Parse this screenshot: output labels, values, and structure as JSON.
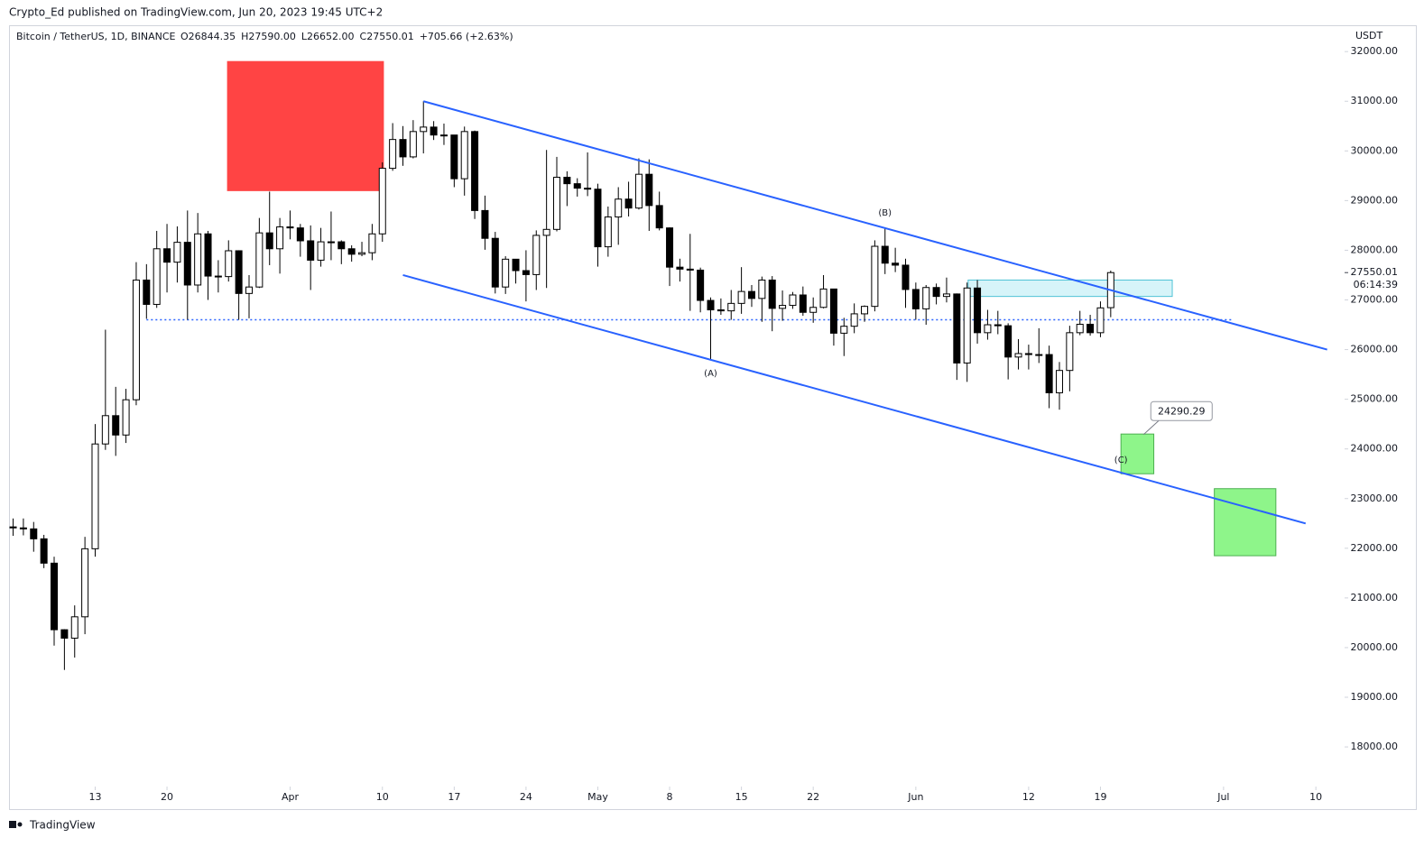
{
  "header": {
    "byline": "Crypto_Ed published on TradingView.com, Jun 20, 2023 19:45 UTC+2",
    "footer": "TradingView"
  },
  "chart_data": {
    "type": "candlestick",
    "symbol": "Bitcoin / TetherUS, 1D, BINANCE",
    "legend": [
      "O26844.35",
      "H27590.00",
      "L26652.00",
      "C27550.01",
      "+705.66 (+2.63%)"
    ],
    "currency": "USDT",
    "last_price": {
      "value": 27550.01,
      "label": "27550.01"
    },
    "countdown": "06:14:39",
    "open": [
      22430,
      22410,
      22390,
      22190,
      21700,
      20360,
      20190,
      20620,
      21990,
      24100,
      24670,
      24280,
      24990,
      27400,
      26910,
      28030,
      27760,
      28160,
      27300,
      28330,
      27480,
      27470,
      27990,
      27130,
      27260,
      28350,
      28030,
      28470,
      28450,
      28190,
      27800,
      28170,
      28170,
      28030,
      27920,
      27950,
      28330,
      29650,
      30230,
      29880,
      30390,
      30480,
      30320,
      30320,
      29440,
      30390,
      28800,
      28240,
      27260,
      27820,
      27590,
      27510,
      28300,
      28420,
      29470,
      29340,
      29250,
      29230,
      28070,
      28670,
      29030,
      28850,
      29530,
      28900,
      28450,
      27660,
      27620,
      27600,
      26990,
      26800,
      26780,
      26930,
      27170,
      27030,
      27400,
      26830,
      26890,
      27100,
      26750,
      26850,
      27220,
      26330,
      26470,
      26720,
      26870,
      28080,
      27740,
      27700,
      27210,
      26820,
      27250,
      27070,
      27120,
      25730,
      27240,
      26340,
      26500,
      26480,
      25850,
      25920,
      25900,
      25900,
      25130,
      25580,
      26340,
      26510,
      26340,
      26844.35
    ],
    "high": [
      22600,
      22600,
      22530,
      22270,
      21830,
      20370,
      20850,
      22230,
      24500,
      26400,
      25250,
      25210,
      27760,
      27720,
      28390,
      28530,
      28480,
      28800,
      28750,
      28390,
      27800,
      28200,
      28000,
      27500,
      28650,
      29180,
      28650,
      28800,
      28530,
      28500,
      28450,
      28780,
      28200,
      28100,
      28170,
      28530,
      29770,
      30560,
      30500,
      30620,
      31000,
      30600,
      30550,
      30320,
      30490,
      30410,
      29100,
      28370,
      27880,
      27820,
      28000,
      28400,
      30020,
      29880,
      29590,
      29450,
      29970,
      29340,
      28880,
      29270,
      29380,
      29850,
      29830,
      29180,
      28460,
      27830,
      28330,
      27650,
      27050,
      27030,
      27200,
      27660,
      27300,
      27470,
      27480,
      27190,
      27160,
      27270,
      27050,
      27500,
      27220,
      26640,
      26930,
      26890,
      28200,
      28450,
      28050,
      27830,
      27350,
      27300,
      27330,
      27450,
      27130,
      27350,
      27400,
      26800,
      26780,
      26530,
      26210,
      26100,
      26430,
      26080,
      25750,
      26480,
      26780,
      26700,
      26970,
      27590
    ],
    "low": [
      22250,
      22260,
      21930,
      21600,
      20040,
      19550,
      19800,
      20270,
      21830,
      23980,
      23860,
      24120,
      24880,
      26620,
      26840,
      27150,
      27350,
      26600,
      27150,
      27000,
      27150,
      27370,
      26600,
      26630,
      27240,
      27700,
      27530,
      28220,
      27870,
      27200,
      27670,
      27800,
      27720,
      27770,
      27880,
      27800,
      28170,
      29600,
      29700,
      29850,
      29950,
      30220,
      30120,
      29270,
      29100,
      28630,
      28010,
      27130,
      27120,
      27330,
      26970,
      27200,
      27240,
      28380,
      28890,
      29080,
      29090,
      27670,
      27870,
      28110,
      28680,
      28820,
      28390,
      28400,
      27280,
      27370,
      26780,
      26750,
      25810,
      26700,
      26600,
      26720,
      26860,
      26560,
      26370,
      26580,
      26820,
      26680,
      26540,
      26830,
      26080,
      25870,
      26330,
      26560,
      26770,
      27520,
      27560,
      26840,
      26600,
      26500,
      26910,
      26950,
      25390,
      25350,
      26120,
      26200,
      26310,
      25400,
      25600,
      25600,
      25730,
      24820,
      24790,
      25160,
      26290,
      26280,
      26250,
      26652
    ],
    "close": [
      22410,
      22390,
      22190,
      21700,
      20360,
      20190,
      20620,
      21990,
      24100,
      24670,
      24280,
      24990,
      27400,
      26910,
      28030,
      27760,
      28160,
      27300,
      28330,
      27480,
      27470,
      27990,
      27130,
      27260,
      28350,
      28030,
      28470,
      28450,
      28190,
      27800,
      28170,
      28170,
      28030,
      27920,
      27950,
      28330,
      29650,
      30230,
      29880,
      30390,
      30480,
      30320,
      30320,
      29440,
      30390,
      28800,
      28240,
      27260,
      27820,
      27590,
      27510,
      28300,
      28420,
      29470,
      29340,
      29250,
      29230,
      28070,
      28670,
      29030,
      28850,
      29530,
      28900,
      28450,
      27660,
      27620,
      27600,
      26990,
      26800,
      26780,
      26930,
      27170,
      27030,
      27400,
      26830,
      26890,
      27100,
      26750,
      26850,
      27220,
      26330,
      26470,
      26720,
      26870,
      28080,
      27740,
      27700,
      27210,
      26820,
      27250,
      27070,
      27120,
      25730,
      27240,
      26340,
      26500,
      26480,
      25850,
      25920,
      25900,
      25900,
      25130,
      25580,
      26340,
      26510,
      26340,
      26840,
      27550.01
    ],
    "xlim": [
      -0.4,
      129.8
    ],
    "ylim": [
      16730,
      32530
    ],
    "xticks": [
      {
        "value": 8,
        "label": "13"
      },
      {
        "value": 15,
        "label": "20"
      },
      {
        "value": 27,
        "label": "Apr"
      },
      {
        "value": 36,
        "label": "10"
      },
      {
        "value": 43,
        "label": "17"
      },
      {
        "value": 50,
        "label": "24"
      },
      {
        "value": 57,
        "label": "May"
      },
      {
        "value": 64,
        "label": "8"
      },
      {
        "value": 71,
        "label": "15"
      },
      {
        "value": 78,
        "label": "22"
      },
      {
        "value": 88,
        "label": "Jun"
      },
      {
        "value": 99,
        "label": "12"
      },
      {
        "value": 106,
        "label": "19"
      },
      {
        "value": 118,
        "label": "Jul"
      },
      {
        "value": 127,
        "label": "10"
      }
    ],
    "yticks": [
      {
        "value": 32000,
        "label": "32000.00"
      },
      {
        "value": 31000,
        "label": "31000.00"
      },
      {
        "value": 30000,
        "label": "30000.00"
      },
      {
        "value": 29000,
        "label": "29000.00"
      },
      {
        "value": 28000,
        "label": "28000.00"
      },
      {
        "value": 27000,
        "label": "27000.00"
      },
      {
        "value": 26000,
        "label": "26000.00"
      },
      {
        "value": 25000,
        "label": "25000.00"
      },
      {
        "value": 24000,
        "label": "24000.00"
      },
      {
        "value": 23000,
        "label": "23000.00"
      },
      {
        "value": 22000,
        "label": "22000.00"
      },
      {
        "value": 21000,
        "label": "21000.00"
      },
      {
        "value": 20000,
        "label": "20000.00"
      },
      {
        "value": 19000,
        "label": "19000.00"
      },
      {
        "value": 18000,
        "label": "18000.00"
      }
    ],
    "grid": false,
    "colors": {
      "up": "#ffffff",
      "down": "#000000",
      "down_rising": "#9e9e9e",
      "border": "#000000"
    },
    "trendlines": [
      {
        "points": [
          [
            40,
            31000
          ],
          [
            128.1,
            26000
          ]
        ],
        "color": "#2962ff"
      },
      {
        "points": [
          [
            38,
            27500
          ],
          [
            126,
            22500
          ]
        ],
        "color": "#2962ff"
      }
    ],
    "hlines": [
      {
        "value": 26600,
        "from": 13,
        "to": 119,
        "color": "#2962ff",
        "dash": true
      }
    ],
    "boxes": [
      {
        "x": [
          20.9,
          36.1
        ],
        "y": [
          29200,
          31800
        ],
        "fill": "#ff4444",
        "stroke": "#ff4444"
      },
      {
        "x": [
          93.1,
          113.0
        ],
        "y": [
          27070,
          27400
        ],
        "fill": "#d6f4f9",
        "stroke": "#4fc3d6"
      },
      {
        "x": [
          108,
          111.2
        ],
        "y": [
          23500,
          24300
        ],
        "fill": "#8ef58a",
        "stroke": "#4caf50"
      },
      {
        "x": [
          117.1,
          123.1
        ],
        "y": [
          21850,
          23200
        ],
        "fill": "#8ef58a",
        "stroke": "#4caf50"
      }
    ],
    "annotations": [
      {
        "text": "(A)",
        "x": 68,
        "y": 25520
      },
      {
        "text": "(B)",
        "x": 85,
        "y": 28750
      },
      {
        "text": "(C)",
        "x": 108,
        "y": 23780
      }
    ],
    "callout": {
      "text": "24290.29",
      "x": 113.9,
      "y": 24770,
      "anchor": [
        110.2,
        24290.29
      ]
    }
  }
}
